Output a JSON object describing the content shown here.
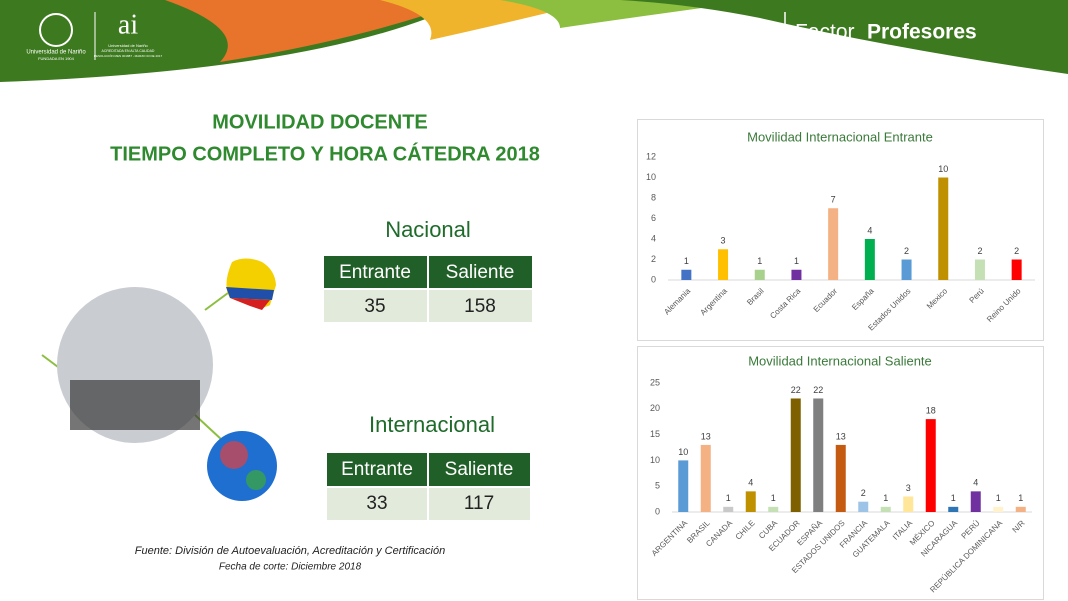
{
  "header": {
    "university": "Universidad de Nariño",
    "founded": "FUNDADA EN 1904",
    "ai_logo": "ai",
    "ai_university": "Universidad de Nariño",
    "ai_line1": "ACREDITADA EN ALTA CALIDAD",
    "ai_line2": "RESOLUCIÓN MEN 001887 - MARZO 03 DE 2017",
    "factor": "Factor",
    "factor_name": "Profesores"
  },
  "title": [
    "MOVILIDAD DOCENTE",
    "TIEMPO COMPLETO Y HORA CÁTEDRA 2018"
  ],
  "nacional": {
    "title": "Nacional",
    "headers": [
      "Entrante",
      "Saliente"
    ],
    "values": [
      35,
      158
    ]
  },
  "internacional": {
    "title": "Internacional",
    "headers": [
      "Entrante",
      "Saliente"
    ],
    "values": [
      33,
      117
    ]
  },
  "footer": {
    "source": "Fuente: División de Autoevaluación, Acreditación y  Certificación",
    "date": "Fecha de corte: Diciembre  2018"
  },
  "chart_data": [
    {
      "type": "bar",
      "title": "Movilidad Internacional Entrante",
      "categories": [
        "Alemania",
        "Argentina",
        "Brasil",
        "Costa Rica",
        "Ecuador",
        "España",
        "Estados Unidos",
        "Mexico",
        "Perú",
        "Reino Unido"
      ],
      "values": [
        1,
        3,
        1,
        1,
        7,
        4,
        2,
        10,
        2,
        2
      ],
      "colors": [
        "#4472c4",
        "#ffc000",
        "#a9d18e",
        "#7030a0",
        "#f4b183",
        "#00b050",
        "#5b9bd5",
        "#bf9000",
        "#c5e0b4",
        "#ff0000"
      ],
      "ylim": [
        0,
        12
      ],
      "yticks": [
        0,
        2,
        4,
        6,
        8,
        10,
        12
      ]
    },
    {
      "type": "bar",
      "title": "Movilidad Internacional Saliente",
      "categories": [
        "ARGENTINA",
        "BRASIL",
        "CANADA",
        "CHILE",
        "CUBA",
        "ECUADOR",
        "ESPAÑA",
        "ESTADOS UNIDOS",
        "FRANCIA",
        "GUATEMALA",
        "ITALIA",
        "MÉXICO",
        "NICARAGUA",
        "PERÚ",
        "REPÚBLICA DOMINICANA",
        "N/R"
      ],
      "values": [
        10,
        13,
        1,
        4,
        1,
        22,
        22,
        13,
        2,
        1,
        3,
        18,
        1,
        4,
        1,
        1
      ],
      "colors": [
        "#5b9bd5",
        "#f4b183",
        "#c9c9c9",
        "#bf9000",
        "#c5e0b4",
        "#7f6000",
        "#7f7f7f",
        "#c55a11",
        "#9dc3e6",
        "#c5e0b4",
        "#ffe699",
        "#ff0000",
        "#2e75b6",
        "#7030a0",
        "#fff2cc",
        "#f4b183"
      ],
      "ylim": [
        0,
        25
      ],
      "yticks": [
        0,
        5,
        10,
        15,
        20,
        25
      ]
    }
  ]
}
